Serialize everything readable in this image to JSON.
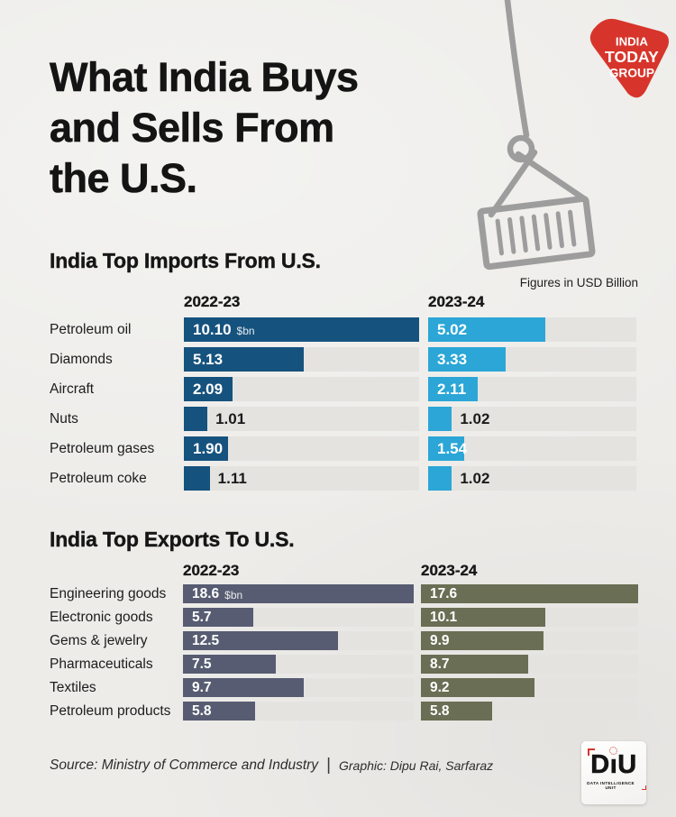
{
  "page": {
    "title_lines": [
      "What India Buys",
      "and Sells From",
      "the U.S."
    ],
    "note": "Figures in USD Billion",
    "footer": {
      "source": "Source: Ministry of Commerce and Industry",
      "separator": "|",
      "graphic": "Graphic: Dipu Rai, Sarfaraz"
    }
  },
  "brand": {
    "india_today": {
      "lines": [
        "INDIA",
        "TODAY",
        "GROUP"
      ],
      "color": "#d7352b"
    },
    "diu": {
      "letters": [
        "D",
        "ı",
        "U"
      ],
      "name": "DIU",
      "caption": "DATA INTELLIGENCE UNIT"
    }
  },
  "chart_data": [
    {
      "type": "bar",
      "title": "India Top Imports From U.S.",
      "unit": "USD Billion",
      "unit_suffix": "$bn",
      "note": "Figures in USD Billion",
      "categories": [
        "Petroleum oil",
        "Diamonds",
        "Aircraft",
        "Nuts",
        "Petroleum gases",
        "Petroleum coke"
      ],
      "series": [
        {
          "name": "2022-23",
          "color": "#16527e",
          "scale_max": 10.1,
          "values": [
            10.1,
            5.13,
            2.09,
            1.01,
            1.9,
            1.11
          ],
          "labels": [
            "10.10",
            "5.13",
            "2.09",
            "1.01",
            "1.90",
            "1.11"
          ]
        },
        {
          "name": "2023-24",
          "color": "#2ba6d6",
          "scale_max": 8.94,
          "values": [
            5.02,
            3.33,
            2.11,
            1.02,
            1.54,
            1.02
          ],
          "labels": [
            "5.02",
            "3.33",
            "2.11",
            "1.02",
            "1.54",
            "1.02"
          ]
        }
      ]
    },
    {
      "type": "bar",
      "title": "India Top Exports To U.S.",
      "unit": "USD Billion",
      "unit_suffix": "$bn",
      "categories": [
        "Engineering goods",
        "Electronic goods",
        "Gems & jewelry",
        "Pharmaceuticals",
        "Textiles",
        "Petroleum products"
      ],
      "series": [
        {
          "name": "2022-23",
          "color": "#575c72",
          "scale_max": 18.6,
          "values": [
            18.6,
            5.7,
            12.5,
            7.5,
            9.7,
            5.8
          ],
          "labels": [
            "18.6",
            "5.7",
            "12.5",
            "7.5",
            "9.7",
            "5.8"
          ]
        },
        {
          "name": "2023-24",
          "color": "#6a6e54",
          "scale_max": 17.6,
          "values": [
            17.6,
            10.1,
            9.9,
            8.7,
            9.2,
            5.8
          ],
          "labels": [
            "17.6",
            "10.1",
            "9.9",
            "8.7",
            "9.2",
            "5.8"
          ]
        }
      ]
    }
  ]
}
